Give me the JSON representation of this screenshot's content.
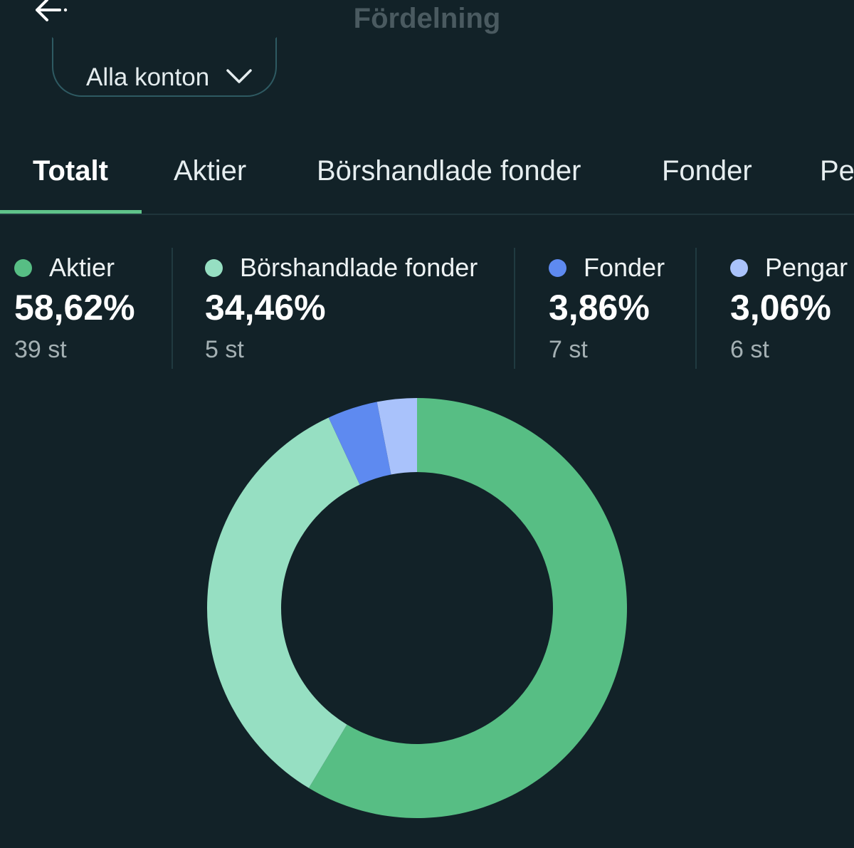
{
  "header": {
    "title": "Fördelning",
    "back_icon": "arrow-left-icon"
  },
  "account_selector": {
    "label": "Alla konton",
    "icon": "chevron-down-icon"
  },
  "tabs": [
    {
      "label": "Totalt",
      "active": true
    },
    {
      "label": "Aktier",
      "active": false
    },
    {
      "label": "Börshandlade fonder",
      "active": false
    },
    {
      "label": "Fonder",
      "active": false
    },
    {
      "label": "Pe",
      "active": false
    }
  ],
  "legend": [
    {
      "name": "Aktier",
      "percent": "58,62%",
      "count": "39 st",
      "color": "#57be84"
    },
    {
      "name": "Börshandlade fonder",
      "percent": "34,46%",
      "count": "5 st",
      "color": "#96dfc2"
    },
    {
      "name": "Fonder",
      "percent": "3,86%",
      "count": "7 st",
      "color": "#5e8af0"
    },
    {
      "name": "Pengar",
      "percent": "3,06%",
      "count": "6 st",
      "color": "#a9c2fb"
    }
  ],
  "colors": {
    "background": "#122228",
    "accent": "#5fc38a"
  },
  "chart_data": {
    "type": "pie",
    "categories": [
      "Aktier",
      "Börshandlade fonder",
      "Fonder",
      "Pengar"
    ],
    "values": [
      58.62,
      34.46,
      3.86,
      3.06
    ],
    "colors": [
      "#57be84",
      "#96dfc2",
      "#5e8af0",
      "#a9c2fb"
    ],
    "donut": true,
    "start": "top",
    "direction": "clockwise"
  }
}
